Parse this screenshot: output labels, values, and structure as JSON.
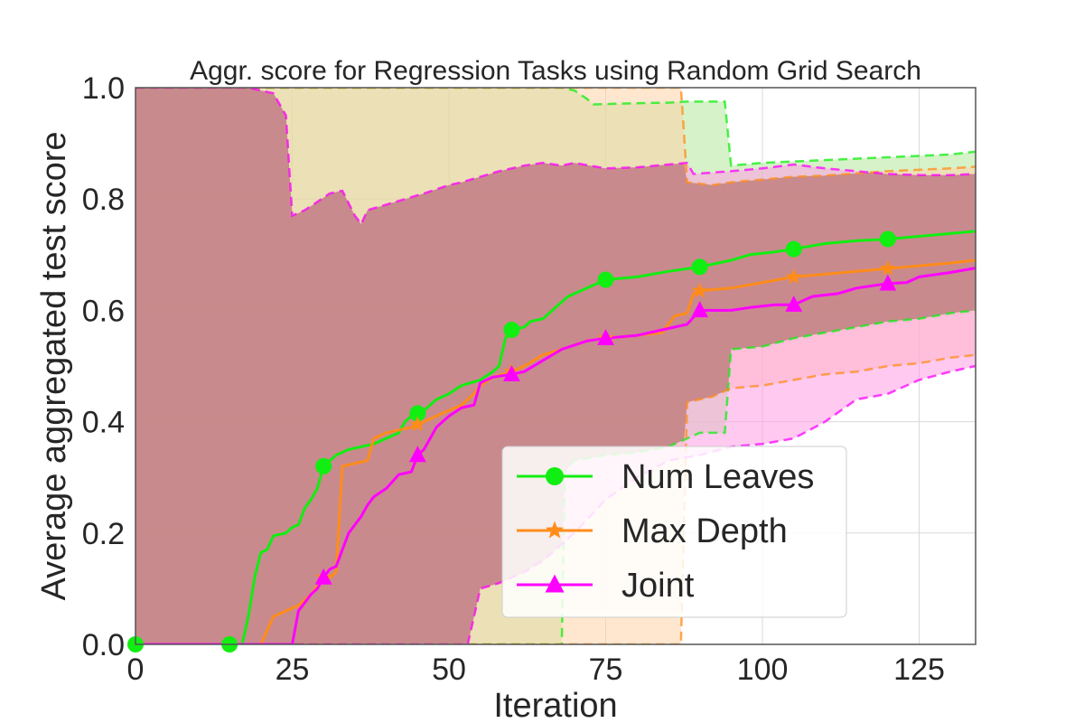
{
  "chart_data": {
    "type": "line",
    "title": "Aggr. score for Regression Tasks using Random Grid Search",
    "xlabel": "Iteration",
    "ylabel": "Average aggregated test score",
    "xlim": [
      0,
      134
    ],
    "ylim": [
      0.0,
      1.0
    ],
    "xticks": [
      0,
      25,
      50,
      75,
      100,
      125
    ],
    "xtick_labels": [
      "0",
      "25",
      "50",
      "75",
      "100",
      "125"
    ],
    "yticks": [
      0.0,
      0.2,
      0.4,
      0.6,
      0.8,
      1.0
    ],
    "ytick_labels": [
      "0.0",
      "0.2",
      "0.4",
      "0.6",
      "0.8",
      "1.0"
    ],
    "grid": true,
    "legend_position": "lower-right",
    "fill_color": "#c48585",
    "series": [
      {
        "name": "Num Leaves",
        "color": "#11ee11",
        "marker": "circle",
        "mean": [
          [
            0,
            0
          ],
          [
            17,
            0
          ],
          [
            18,
            0.05
          ],
          [
            19,
            0.12
          ],
          [
            20,
            0.165
          ],
          [
            21,
            0.17
          ],
          [
            22,
            0.195
          ],
          [
            24,
            0.2
          ],
          [
            25,
            0.21
          ],
          [
            26,
            0.215
          ],
          [
            27,
            0.245
          ],
          [
            28,
            0.26
          ],
          [
            29,
            0.28
          ],
          [
            30,
            0.32
          ],
          [
            31,
            0.33
          ],
          [
            32,
            0.34
          ],
          [
            34,
            0.35
          ],
          [
            36,
            0.355
          ],
          [
            38,
            0.36
          ],
          [
            40,
            0.37
          ],
          [
            42,
            0.38
          ],
          [
            43,
            0.4
          ],
          [
            44,
            0.41
          ],
          [
            46,
            0.42
          ],
          [
            48,
            0.44
          ],
          [
            50,
            0.45
          ],
          [
            52,
            0.465
          ],
          [
            55,
            0.475
          ],
          [
            57,
            0.49
          ],
          [
            58,
            0.5
          ],
          [
            59,
            0.55
          ],
          [
            60,
            0.565
          ],
          [
            62,
            0.57
          ],
          [
            63,
            0.58
          ],
          [
            65,
            0.585
          ],
          [
            67,
            0.605
          ],
          [
            69,
            0.625
          ],
          [
            72,
            0.64
          ],
          [
            75,
            0.655
          ],
          [
            80,
            0.66
          ],
          [
            85,
            0.67
          ],
          [
            90,
            0.678
          ],
          [
            95,
            0.69
          ],
          [
            98,
            0.7
          ],
          [
            102,
            0.705
          ],
          [
            105,
            0.71
          ],
          [
            110,
            0.72
          ],
          [
            115,
            0.725
          ],
          [
            120,
            0.728
          ],
          [
            125,
            0.733
          ],
          [
            130,
            0.738
          ],
          [
            134,
            0.742
          ]
        ],
        "upper": [
          [
            0,
            1.0
          ],
          [
            68,
            1.0
          ],
          [
            70,
            0.995
          ],
          [
            72,
            0.98
          ],
          [
            73,
            0.97
          ],
          [
            80,
            0.972
          ],
          [
            85,
            0.973
          ],
          [
            88,
            0.975
          ],
          [
            94,
            0.975
          ],
          [
            95,
            0.86
          ],
          [
            100,
            0.865
          ],
          [
            110,
            0.87
          ],
          [
            120,
            0.875
          ],
          [
            130,
            0.88
          ],
          [
            134,
            0.885
          ]
        ],
        "lower": [
          [
            0,
            0
          ],
          [
            67,
            0
          ],
          [
            68,
            0.0
          ],
          [
            68.5,
            0.31
          ],
          [
            70,
            0.33
          ],
          [
            75,
            0.34
          ],
          [
            80,
            0.345
          ],
          [
            85,
            0.355
          ],
          [
            88,
            0.37
          ],
          [
            90,
            0.38
          ],
          [
            94,
            0.38
          ],
          [
            95,
            0.53
          ],
          [
            100,
            0.535
          ],
          [
            105,
            0.55
          ],
          [
            110,
            0.56
          ],
          [
            115,
            0.57
          ],
          [
            120,
            0.58
          ],
          [
            125,
            0.585
          ],
          [
            130,
            0.595
          ],
          [
            134,
            0.6
          ]
        ],
        "marker_x": [
          0,
          15,
          30,
          45,
          60,
          75,
          90,
          105,
          120
        ]
      },
      {
        "name": "Max Depth",
        "color": "#ff8c1a",
        "marker": "star",
        "mean": [
          [
            0,
            0
          ],
          [
            20,
            0
          ],
          [
            22,
            0.05
          ],
          [
            24,
            0.06
          ],
          [
            26,
            0.07
          ],
          [
            28,
            0.09
          ],
          [
            30,
            0.12
          ],
          [
            31,
            0.12
          ],
          [
            32,
            0.13
          ],
          [
            33,
            0.32
          ],
          [
            35,
            0.325
          ],
          [
            37,
            0.33
          ],
          [
            38,
            0.37
          ],
          [
            40,
            0.38
          ],
          [
            42,
            0.385
          ],
          [
            44,
            0.39
          ],
          [
            46,
            0.4
          ],
          [
            48,
            0.41
          ],
          [
            50,
            0.42
          ],
          [
            52,
            0.43
          ],
          [
            54,
            0.45
          ],
          [
            55,
            0.465
          ],
          [
            57,
            0.48
          ],
          [
            60,
            0.49
          ],
          [
            62,
            0.5
          ],
          [
            65,
            0.52
          ],
          [
            68,
            0.53
          ],
          [
            72,
            0.545
          ],
          [
            75,
            0.55
          ],
          [
            80,
            0.555
          ],
          [
            84,
            0.56
          ],
          [
            86,
            0.59
          ],
          [
            88,
            0.595
          ],
          [
            89,
            0.63
          ],
          [
            90,
            0.635
          ],
          [
            95,
            0.64
          ],
          [
            100,
            0.65
          ],
          [
            105,
            0.66
          ],
          [
            110,
            0.665
          ],
          [
            115,
            0.67
          ],
          [
            120,
            0.675
          ],
          [
            125,
            0.68
          ],
          [
            130,
            0.685
          ],
          [
            134,
            0.69
          ]
        ],
        "upper": [
          [
            0,
            1.0
          ],
          [
            87,
            1.0
          ],
          [
            88,
            0.83
          ],
          [
            92,
            0.825
          ],
          [
            95,
            0.83
          ],
          [
            100,
            0.835
          ],
          [
            105,
            0.84
          ],
          [
            110,
            0.842
          ],
          [
            120,
            0.85
          ],
          [
            130,
            0.855
          ],
          [
            134,
            0.858
          ]
        ],
        "lower": [
          [
            0,
            0
          ],
          [
            87,
            0
          ],
          [
            88,
            0.435
          ],
          [
            92,
            0.445
          ],
          [
            95,
            0.46
          ],
          [
            100,
            0.465
          ],
          [
            105,
            0.475
          ],
          [
            110,
            0.485
          ],
          [
            115,
            0.49
          ],
          [
            120,
            0.5
          ],
          [
            125,
            0.505
          ],
          [
            130,
            0.515
          ],
          [
            134,
            0.52
          ]
        ],
        "marker_x": [
          30,
          45,
          60,
          75,
          90,
          105,
          120
        ]
      },
      {
        "name": "Joint",
        "color": "#ff00ff",
        "marker": "triangle",
        "mean": [
          [
            0,
            0
          ],
          [
            25,
            0
          ],
          [
            26,
            0.06
          ],
          [
            27,
            0.075
          ],
          [
            28,
            0.09
          ],
          [
            29,
            0.1
          ],
          [
            30,
            0.12
          ],
          [
            31,
            0.135
          ],
          [
            32,
            0.14
          ],
          [
            33,
            0.17
          ],
          [
            34,
            0.2
          ],
          [
            35,
            0.215
          ],
          [
            36,
            0.23
          ],
          [
            37,
            0.25
          ],
          [
            38,
            0.265
          ],
          [
            40,
            0.28
          ],
          [
            42,
            0.305
          ],
          [
            44,
            0.31
          ],
          [
            45,
            0.34
          ],
          [
            46,
            0.35
          ],
          [
            48,
            0.39
          ],
          [
            50,
            0.41
          ],
          [
            52,
            0.425
          ],
          [
            54,
            0.43
          ],
          [
            55,
            0.47
          ],
          [
            57,
            0.48
          ],
          [
            60,
            0.485
          ],
          [
            62,
            0.49
          ],
          [
            65,
            0.51
          ],
          [
            68,
            0.53
          ],
          [
            72,
            0.545
          ],
          [
            75,
            0.55
          ],
          [
            80,
            0.555
          ],
          [
            84,
            0.565
          ],
          [
            88,
            0.575
          ],
          [
            90,
            0.6
          ],
          [
            95,
            0.6
          ],
          [
            98,
            0.605
          ],
          [
            102,
            0.61
          ],
          [
            105,
            0.61
          ],
          [
            108,
            0.625
          ],
          [
            112,
            0.63
          ],
          [
            115,
            0.64
          ],
          [
            118,
            0.645
          ],
          [
            120,
            0.648
          ],
          [
            123,
            0.65
          ],
          [
            125,
            0.66
          ],
          [
            130,
            0.668
          ],
          [
            134,
            0.676
          ]
        ],
        "upper": [
          [
            0,
            1.0
          ],
          [
            18,
            1.0
          ],
          [
            22,
            0.99
          ],
          [
            24,
            0.95
          ],
          [
            25,
            0.77
          ],
          [
            27,
            0.78
          ],
          [
            29,
            0.795
          ],
          [
            31,
            0.81
          ],
          [
            33,
            0.815
          ],
          [
            35,
            0.77
          ],
          [
            36,
            0.755
          ],
          [
            37,
            0.78
          ],
          [
            40,
            0.79
          ],
          [
            43,
            0.8
          ],
          [
            46,
            0.81
          ],
          [
            50,
            0.825
          ],
          [
            52,
            0.83
          ],
          [
            55,
            0.84
          ],
          [
            58,
            0.85
          ],
          [
            62,
            0.86
          ],
          [
            65,
            0.865
          ],
          [
            68,
            0.86
          ],
          [
            70,
            0.865
          ],
          [
            75,
            0.855
          ],
          [
            80,
            0.857
          ],
          [
            85,
            0.862
          ],
          [
            88,
            0.865
          ],
          [
            89,
            0.845
          ],
          [
            95,
            0.85
          ],
          [
            100,
            0.855
          ],
          [
            105,
            0.862
          ],
          [
            110,
            0.855
          ],
          [
            115,
            0.85
          ],
          [
            120,
            0.845
          ],
          [
            125,
            0.843
          ],
          [
            130,
            0.843
          ],
          [
            134,
            0.845
          ]
        ],
        "lower": [
          [
            0,
            0
          ],
          [
            53,
            0
          ],
          [
            54,
            0.05
          ],
          [
            55,
            0.1
          ],
          [
            58,
            0.11
          ],
          [
            62,
            0.13
          ],
          [
            65,
            0.15
          ],
          [
            70,
            0.2
          ],
          [
            75,
            0.26
          ],
          [
            80,
            0.3
          ],
          [
            85,
            0.33
          ],
          [
            90,
            0.34
          ],
          [
            95,
            0.355
          ],
          [
            100,
            0.36
          ],
          [
            105,
            0.37
          ],
          [
            110,
            0.4
          ],
          [
            115,
            0.44
          ],
          [
            120,
            0.45
          ],
          [
            122,
            0.46
          ],
          [
            125,
            0.475
          ],
          [
            130,
            0.49
          ],
          [
            134,
            0.5
          ]
        ],
        "marker_x": [
          30,
          45,
          60,
          75,
          90,
          105,
          120
        ]
      }
    ]
  }
}
